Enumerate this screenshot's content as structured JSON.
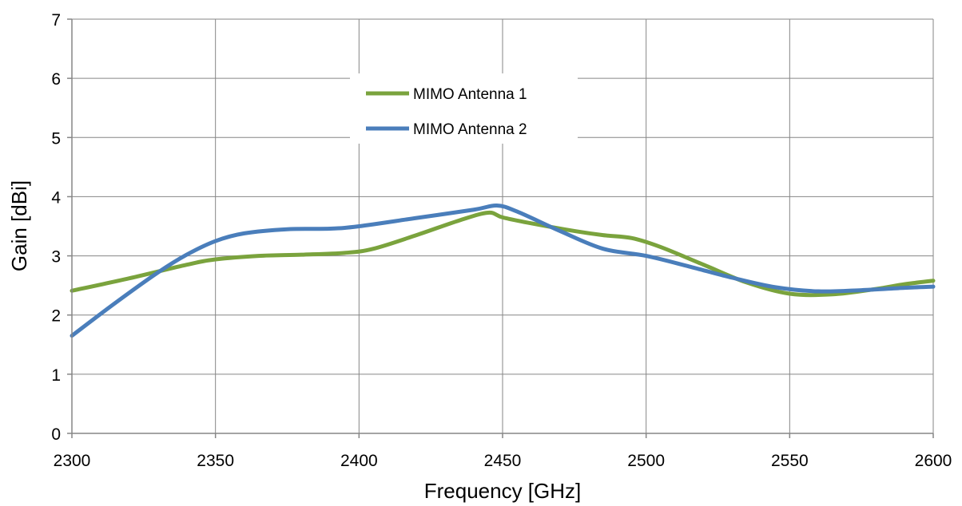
{
  "chart_data": {
    "type": "line",
    "xlabel": "Frequency [GHz]",
    "ylabel": "Gain [dBi]",
    "xlim": [
      2300,
      2600
    ],
    "ylim": [
      0,
      7
    ],
    "xticks": [
      2300,
      2350,
      2400,
      2450,
      2500,
      2550,
      2600
    ],
    "yticks": [
      0,
      1,
      2,
      3,
      4,
      5,
      6,
      7
    ],
    "grid": true,
    "legend_position": "top-center",
    "series": [
      {
        "name": "MIMO Antenna 1",
        "color": "#7aa33d",
        "x": [
          2300,
          2320,
          2340,
          2350,
          2365,
          2380,
          2395,
          2405,
          2420,
          2435,
          2445,
          2450,
          2460,
          2475,
          2485,
          2495,
          2505,
          2520,
          2535,
          2550,
          2565,
          2580,
          2590,
          2600
        ],
        "y": [
          2.41,
          2.62,
          2.85,
          2.94,
          3.0,
          3.02,
          3.05,
          3.12,
          3.35,
          3.6,
          3.73,
          3.65,
          3.55,
          3.42,
          3.35,
          3.3,
          3.15,
          2.85,
          2.55,
          2.36,
          2.35,
          2.44,
          2.52,
          2.58
        ]
      },
      {
        "name": "MIMO Antenna 2",
        "color": "#4a7ebb",
        "x": [
          2300,
          2315,
          2330,
          2340,
          2350,
          2360,
          2375,
          2390,
          2400,
          2420,
          2440,
          2448,
          2455,
          2470,
          2485,
          2500,
          2515,
          2530,
          2545,
          2560,
          2575,
          2590,
          2600
        ],
        "y": [
          1.65,
          2.2,
          2.72,
          3.02,
          3.25,
          3.38,
          3.45,
          3.46,
          3.5,
          3.64,
          3.78,
          3.85,
          3.75,
          3.42,
          3.12,
          3.0,
          2.82,
          2.63,
          2.47,
          2.4,
          2.42,
          2.46,
          2.48
        ]
      }
    ]
  }
}
